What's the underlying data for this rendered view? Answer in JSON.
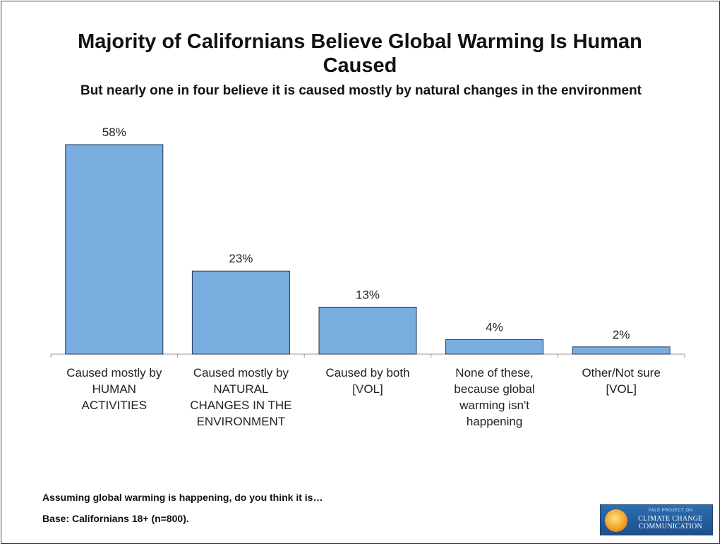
{
  "chart_data": {
    "type": "bar",
    "title": "Majority of Californians Believe Global Warming Is Human Caused",
    "subtitle": "But nearly one in four believe it is caused mostly by natural changes in the environment",
    "categories": [
      [
        "Caused mostly by",
        "HUMAN",
        "ACTIVITIES"
      ],
      [
        "Caused mostly by",
        "NATURAL",
        "CHANGES IN THE",
        "ENVIRONMENT"
      ],
      [
        "Caused by both",
        "[VOL]"
      ],
      [
        "None of these,",
        "because global",
        "warming isn't",
        "happening"
      ],
      [
        "Other/Not sure",
        "[VOL]"
      ]
    ],
    "values": [
      58,
      23,
      13,
      4,
      2
    ],
    "data_labels": [
      "58%",
      "23%",
      "13%",
      "4%",
      "2%"
    ],
    "ylim": [
      0,
      58
    ],
    "bar_color": "#7aaee0",
    "bar_stroke": "#1f3552",
    "grid": false,
    "legend": "none"
  },
  "footer": {
    "question": "Assuming global warming is happening, do you think it is…",
    "base": "Base: Californians 18+ (n=800)."
  },
  "logo": {
    "small_text": "YALE PROJECT ON",
    "line1": "CLIMATE CHANGE",
    "line2": "COMMUNICATION"
  }
}
